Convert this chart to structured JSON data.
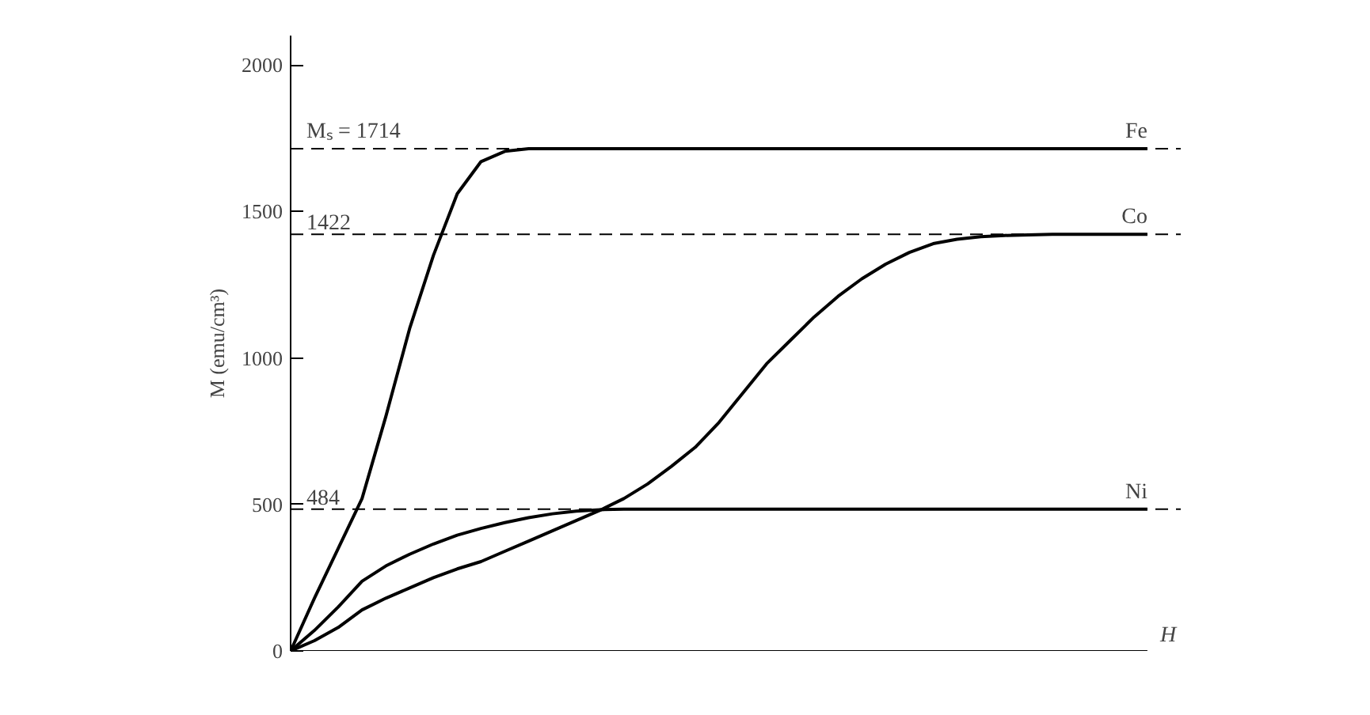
{
  "chart_data": {
    "type": "line",
    "xlabel": "H",
    "ylabel": "M (emu/cm³)",
    "categories": [
      null,
      null,
      null,
      null,
      null,
      null,
      null,
      null,
      null,
      null,
      null,
      null,
      null,
      null,
      null,
      null,
      null,
      null,
      null,
      null,
      null,
      null,
      null,
      null,
      null,
      null,
      null,
      null,
      null,
      null,
      null,
      null,
      null,
      null,
      null,
      null,
      null
    ],
    "series": [
      {
        "name": "Fe",
        "color": "#000000",
        "values": [
          0,
          180,
          350,
          520,
          800,
          1100,
          1350,
          1560,
          1670,
          1705,
          1714,
          1714,
          1714,
          1714,
          1714,
          1714,
          1714,
          1714,
          1714,
          1714,
          1714,
          1714,
          1714,
          1714,
          1714,
          1714,
          1714,
          1714,
          1714,
          1714,
          1714,
          1714,
          1714,
          1714,
          1714,
          1714,
          1714
        ]
      },
      {
        "name": "Co",
        "color": "#000000",
        "values": [
          0,
          35,
          80,
          140,
          180,
          215,
          250,
          280,
          305,
          340,
          375,
          410,
          445,
          480,
          520,
          570,
          630,
          695,
          780,
          880,
          980,
          1060,
          1140,
          1210,
          1270,
          1320,
          1360,
          1390,
          1405,
          1414,
          1418,
          1420,
          1422,
          1422,
          1422,
          1422,
          1422
        ]
      },
      {
        "name": "Ni",
        "color": "#000000",
        "values": [
          0,
          70,
          150,
          238,
          290,
          330,
          365,
          395,
          418,
          438,
          455,
          468,
          477,
          482,
          484,
          484,
          484,
          484,
          484,
          484,
          484,
          484,
          484,
          484,
          484,
          484,
          484,
          484,
          484,
          484,
          484,
          484,
          484,
          484,
          484,
          484,
          484
        ]
      }
    ],
    "ref_lines": [
      {
        "axis": "y",
        "value": 1714,
        "label": "Mₛ = 1714",
        "line_style": "dashed",
        "color": "#000000"
      },
      {
        "axis": "y",
        "value": 1422,
        "label": "1422",
        "line_style": "dashed",
        "color": "#000000"
      },
      {
        "axis": "y",
        "value": 484,
        "label": "484",
        "line_style": "dashed",
        "color": "#000000"
      }
    ],
    "ylim": [
      0,
      2100
    ],
    "yticks": [
      0,
      500,
      1000,
      1500,
      2000
    ],
    "grid": false,
    "marker": "none",
    "line_style": "solid",
    "tick_labels": "y"
  }
}
